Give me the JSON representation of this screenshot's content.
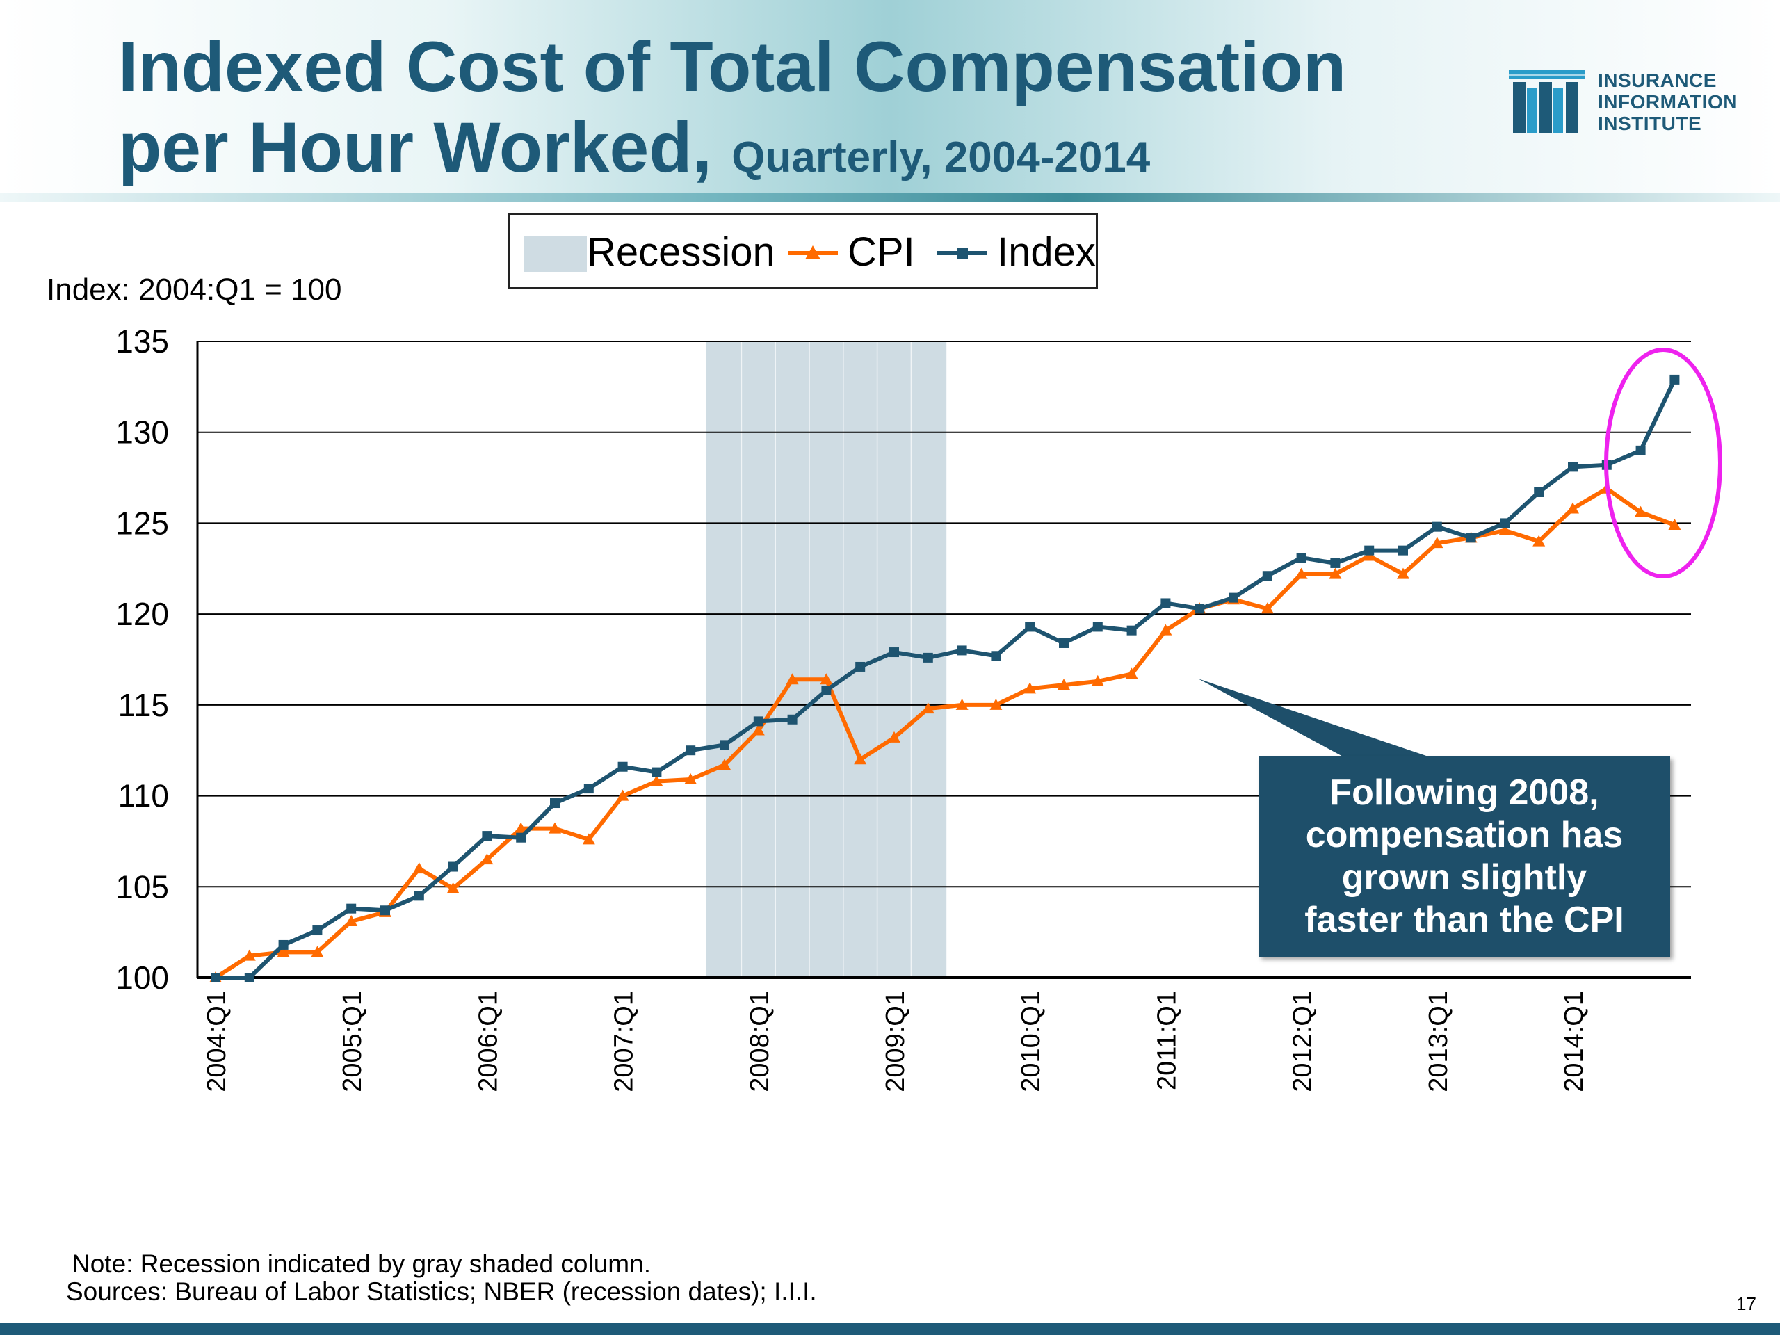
{
  "header": {
    "title_line1": "Indexed Cost of Total Compensation",
    "title_line2": "per Hour Worked,",
    "title_sub": "Quarterly, 2004-2014"
  },
  "logo": {
    "lines": [
      "INSURANCE",
      "INFORMATION",
      "INSTITUTE"
    ],
    "color": "#1e5a78"
  },
  "index_note": "Index: 2004:Q1 = 100",
  "legend": {
    "recession": "Recession",
    "cpi": "CPI",
    "index": "Index"
  },
  "callout": {
    "text": "Following 2008,\ncompensation has\ngrown slightly\nfaster than the CPI",
    "color": "#1e4f6a"
  },
  "footnote": {
    "note": "Note: Recession indicated by gray shaded column.",
    "sources": "Sources: Bureau of Labor Statistics; NBER (recession dates); I.I.I."
  },
  "page_number": "17",
  "colors": {
    "index": "#1e5470",
    "cpi": "#ff6a00",
    "recession": "#cfdce3",
    "highlight_ellipse": "#ee22ee"
  },
  "chart_data": {
    "type": "line",
    "ylabel": "Index: 2004:Q1 = 100",
    "ylim": [
      100,
      135
    ],
    "yticks": [
      100,
      105,
      110,
      115,
      120,
      125,
      130,
      135
    ],
    "xtick_labels": [
      "2004:Q1",
      "2005:Q1",
      "2006:Q1",
      "2007:Q1",
      "2008:Q1",
      "2009:Q1",
      "2010:Q1",
      "2011:Q1",
      "2012:Q1",
      "2013:Q1",
      "2014:Q1"
    ],
    "recession": {
      "start_quarter": "2007:Q4",
      "end_quarter": "2009:Q2"
    },
    "grid": true,
    "legend_position": "top-center",
    "x": [
      "2004:Q1",
      "2004:Q2",
      "2004:Q3",
      "2004:Q4",
      "2005:Q1",
      "2005:Q2",
      "2005:Q3",
      "2005:Q4",
      "2006:Q1",
      "2006:Q2",
      "2006:Q3",
      "2006:Q4",
      "2007:Q1",
      "2007:Q2",
      "2007:Q3",
      "2007:Q4",
      "2008:Q1",
      "2008:Q2",
      "2008:Q3",
      "2008:Q4",
      "2009:Q1",
      "2009:Q2",
      "2009:Q3",
      "2009:Q4",
      "2010:Q1",
      "2010:Q2",
      "2010:Q3",
      "2010:Q4",
      "2011:Q1",
      "2011:Q2",
      "2011:Q3",
      "2011:Q4",
      "2012:Q1",
      "2012:Q2",
      "2012:Q3",
      "2012:Q4",
      "2013:Q1",
      "2013:Q2",
      "2013:Q3",
      "2013:Q4",
      "2014:Q1",
      "2014:Q2",
      "2014:Q3",
      "2014:Q4"
    ],
    "series": [
      {
        "name": "CPI",
        "marker": "triangle",
        "values": [
          100.0,
          101.2,
          101.4,
          101.4,
          103.1,
          103.6,
          106.0,
          104.9,
          106.5,
          108.2,
          108.2,
          107.6,
          110.0,
          110.8,
          110.9,
          111.7,
          113.6,
          116.4,
          116.4,
          112.0,
          113.2,
          114.8,
          115.0,
          115.0,
          115.9,
          116.1,
          116.3,
          116.7,
          119.1,
          120.3,
          120.8,
          120.3,
          122.2,
          122.2,
          123.2,
          122.2,
          123.9,
          124.2,
          124.6,
          124.0,
          125.8,
          126.9,
          125.6,
          124.9
        ]
      },
      {
        "name": "Index",
        "marker": "square",
        "values": [
          100.0,
          100.0,
          101.8,
          102.6,
          103.8,
          103.7,
          104.5,
          106.1,
          107.8,
          107.7,
          109.6,
          110.4,
          111.6,
          111.3,
          112.5,
          112.8,
          114.1,
          114.2,
          115.8,
          117.1,
          117.9,
          117.6,
          118.0,
          117.7,
          119.3,
          118.4,
          119.3,
          119.1,
          120.6,
          120.3,
          120.9,
          122.1,
          123.1,
          122.8,
          123.5,
          123.5,
          124.8,
          124.2,
          125.0,
          126.7,
          128.1,
          128.2,
          129.0,
          132.9
        ]
      }
    ]
  }
}
